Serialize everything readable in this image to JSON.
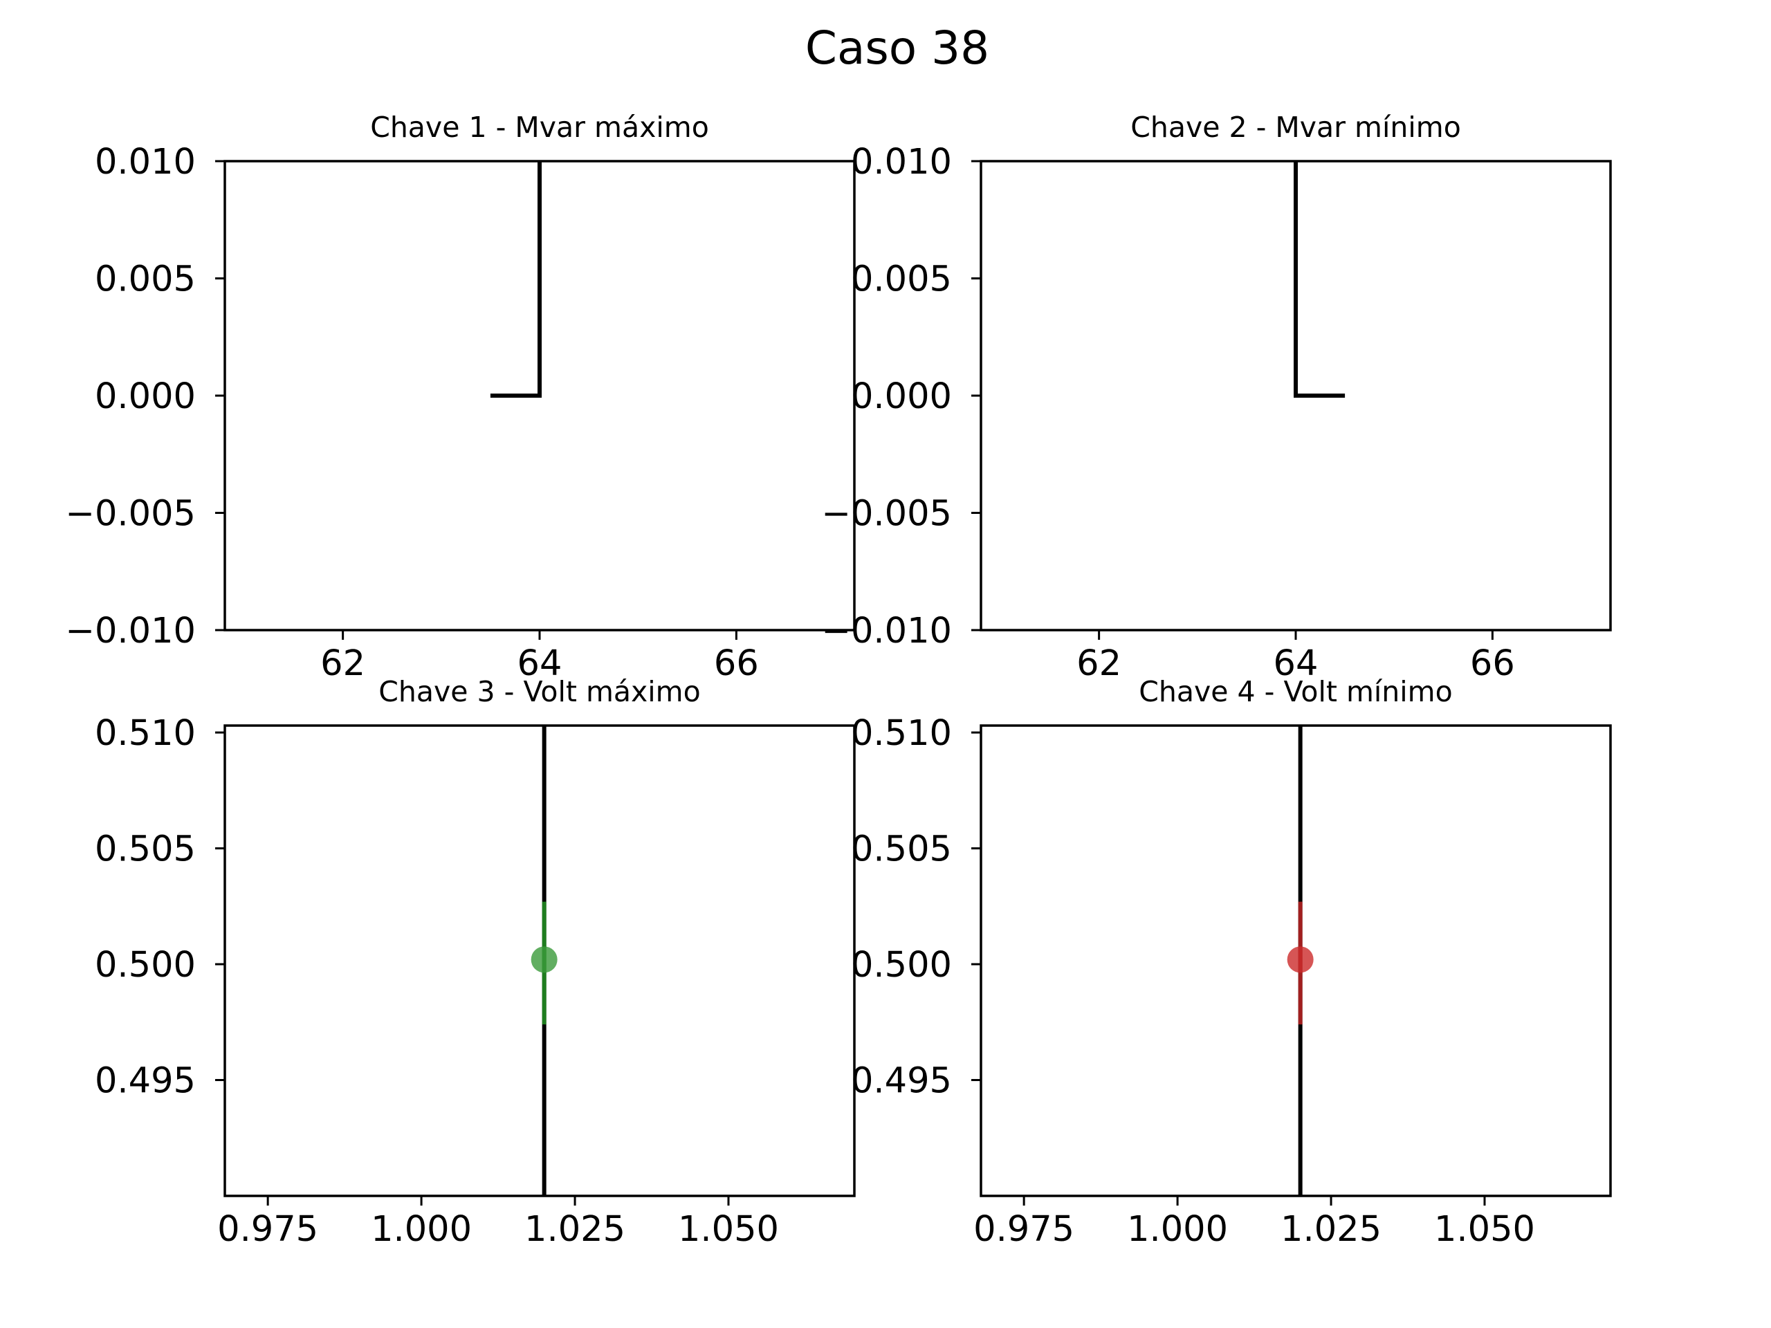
{
  "figure": {
    "title": "Caso 38"
  },
  "chart_data": [
    {
      "type": "line",
      "title": "Chave 1 - Mvar máximo",
      "xlim": [
        60.8,
        67.2
      ],
      "ylim": [
        -0.01,
        0.01
      ],
      "xticks": [
        62,
        64,
        66
      ],
      "xtick_labels": [
        "62",
        "64",
        "66"
      ],
      "yticks": [
        0.01,
        0.005,
        0.0,
        -0.005,
        -0.01
      ],
      "ytick_labels": [
        "0.010",
        "0.005",
        "0.000",
        "−0.005",
        "−0.010"
      ],
      "series": [
        {
          "color": "#000000",
          "x": [
            63.5,
            64.0,
            64.0
          ],
          "y": [
            0.0,
            0.0,
            0.01
          ]
        }
      ],
      "points": [],
      "grid": false
    },
    {
      "type": "line",
      "title": "Chave 2 - Mvar mínimo",
      "xlim": [
        60.8,
        67.2
      ],
      "ylim": [
        -0.01,
        0.01
      ],
      "xticks": [
        62,
        64,
        66
      ],
      "xtick_labels": [
        "62",
        "64",
        "66"
      ],
      "yticks": [
        0.01,
        0.005,
        0.0,
        -0.005,
        -0.01
      ],
      "ytick_labels": [
        "0.010",
        "0.005",
        "0.000",
        "−0.005",
        "−0.010"
      ],
      "series": [
        {
          "color": "#000000",
          "x": [
            64.0,
            64.0,
            64.5
          ],
          "y": [
            0.01,
            0.0,
            0.0
          ]
        }
      ],
      "points": [],
      "grid": false
    },
    {
      "type": "scatter",
      "title": "Chave 3 - Volt máximo",
      "xlim": [
        0.968,
        1.0705
      ],
      "ylim": [
        0.49,
        0.5103
      ],
      "xticks": [
        0.975,
        1.0,
        1.025,
        1.05
      ],
      "xtick_labels": [
        "0.975",
        "1.000",
        "1.025",
        "1.050"
      ],
      "yticks": [
        0.51,
        0.505,
        0.5,
        0.495
      ],
      "ytick_labels": [
        "0.510",
        "0.505",
        "0.500",
        "0.495"
      ],
      "series": [
        {
          "color": "#000000",
          "x": [
            1.02,
            1.02
          ],
          "y": [
            0.49,
            0.5103
          ]
        },
        {
          "color": "#228b22",
          "x": [
            1.02,
            1.02
          ],
          "y": [
            0.4974,
            0.5027
          ]
        }
      ],
      "points": [
        {
          "x": 1.02,
          "y": 0.5002,
          "color": "#3a9a3a"
        }
      ],
      "grid": false
    },
    {
      "type": "scatter",
      "title": "Chave 4 - Volt mínimo",
      "xlim": [
        0.968,
        1.0705
      ],
      "ylim": [
        0.49,
        0.5103
      ],
      "xticks": [
        0.975,
        1.0,
        1.025,
        1.05
      ],
      "xtick_labels": [
        "0.975",
        "1.000",
        "1.025",
        "1.050"
      ],
      "yticks": [
        0.51,
        0.505,
        0.5,
        0.495
      ],
      "ytick_labels": [
        "0.510",
        "0.505",
        "0.500",
        "0.495"
      ],
      "series": [
        {
          "color": "#000000",
          "x": [
            1.02,
            1.02
          ],
          "y": [
            0.49,
            0.5103
          ]
        },
        {
          "color": "#b22222",
          "x": [
            1.02,
            1.02
          ],
          "y": [
            0.4974,
            0.5027
          ]
        }
      ],
      "points": [
        {
          "x": 1.02,
          "y": 0.5002,
          "color": "#cc2a2a"
        }
      ],
      "grid": false
    }
  ]
}
